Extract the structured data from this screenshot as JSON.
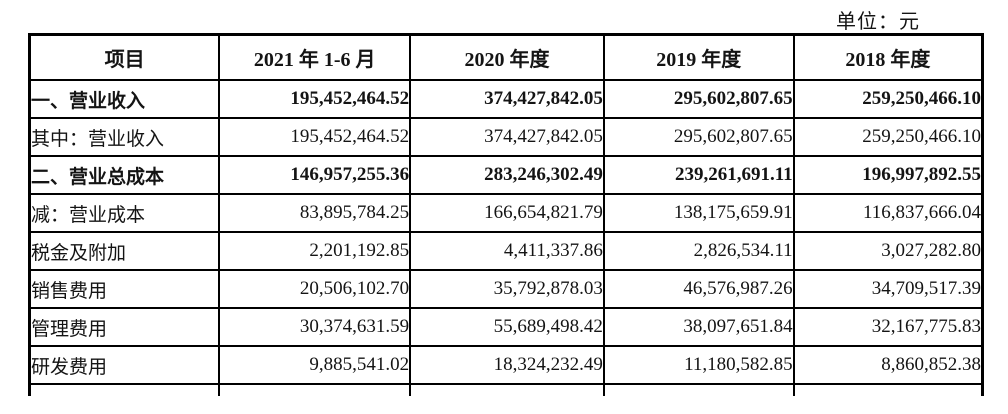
{
  "unit_label": "单位：元",
  "table": {
    "columns": [
      "项目",
      "2021 年 1-6 月",
      "2020 年度",
      "2019 年度",
      "2018 年度"
    ],
    "rows": [
      {
        "label": "一、营业收入",
        "bold": true,
        "bold_cells": [],
        "values": [
          "195,452,464.52",
          "374,427,842.05",
          "295,602,807.65",
          "259,250,466.10"
        ]
      },
      {
        "label": "其中：营业收入",
        "bold": false,
        "bold_cells": [],
        "values": [
          "195,452,464.52",
          "374,427,842.05",
          "295,602,807.65",
          "259,250,466.10"
        ]
      },
      {
        "label": "二、营业总成本",
        "bold": true,
        "bold_cells": [],
        "values": [
          "146,957,255.36",
          "283,246,302.49",
          "239,261,691.11",
          "196,997,892.55"
        ]
      },
      {
        "label": "减：营业成本",
        "bold": false,
        "bold_cells": [
          2
        ],
        "values": [
          "83,895,784.25",
          "166,654,821.79",
          "138,175,659.91",
          "116,837,666.04"
        ]
      },
      {
        "label": "税金及附加",
        "bold": false,
        "bold_cells": [],
        "values": [
          "2,201,192.85",
          "4,411,337.86",
          "2,826,534.11",
          "3,027,282.80"
        ]
      },
      {
        "label": "销售费用",
        "bold": false,
        "bold_cells": [],
        "values": [
          "20,506,102.70",
          "35,792,878.03",
          "46,576,987.26",
          "34,709,517.39"
        ]
      },
      {
        "label": "管理费用",
        "bold": false,
        "bold_cells": [],
        "values": [
          "30,374,631.59",
          "55,689,498.42",
          "38,097,651.84",
          "32,167,775.83"
        ]
      },
      {
        "label": "研发费用",
        "bold": false,
        "bold_cells": [],
        "values": [
          "9,885,541.02",
          "18,324,232.49",
          "11,180,582.85",
          "8,860,852.38"
        ]
      }
    ],
    "partial_next_row": true
  }
}
